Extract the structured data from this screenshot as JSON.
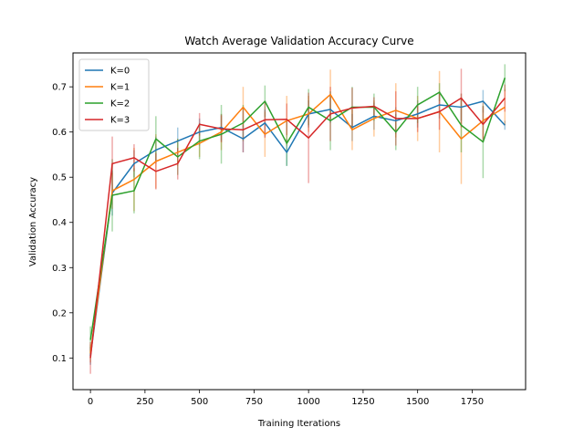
{
  "chart_data": {
    "type": "line",
    "title": "Watch Average Validation Accuracy Curve",
    "xlabel": "Training Iterations",
    "ylabel": "Validation Accuracy",
    "xlim": [
      -80,
      1995
    ],
    "ylim": [
      0.03,
      0.775
    ],
    "x_ticks": [
      0,
      250,
      500,
      750,
      1000,
      1250,
      1500,
      1750
    ],
    "y_ticks": [
      0.1,
      0.2,
      0.3,
      0.4,
      0.5,
      0.6,
      0.7
    ],
    "x_tick_labels": [
      "0",
      "250",
      "500",
      "750",
      "1000",
      "1250",
      "1500",
      "1750"
    ],
    "y_tick_labels": [
      "0.1",
      "0.2",
      "0.3",
      "0.4",
      "0.5",
      "0.6",
      "0.7"
    ],
    "grid": false,
    "legend_position": "top-left",
    "x": [
      0,
      100,
      200,
      300,
      400,
      500,
      600,
      700,
      800,
      900,
      1000,
      1100,
      1200,
      1300,
      1400,
      1500,
      1600,
      1700,
      1800,
      1900
    ],
    "series": [
      {
        "name": "K=0",
        "color": "#1f77b4",
        "values": [
          0.105,
          0.465,
          0.53,
          0.56,
          0.58,
          0.6,
          0.61,
          0.585,
          0.62,
          0.555,
          0.64,
          0.65,
          0.61,
          0.635,
          0.625,
          0.64,
          0.66,
          0.655,
          0.668,
          0.615
        ],
        "errors": [
          0.02,
          0.05,
          0.03,
          0.03,
          0.03,
          0.03,
          0.03,
          0.03,
          0.03,
          0.03,
          0.03,
          0.03,
          0.03,
          0.03,
          0.03,
          0.03,
          0.03,
          0.03,
          0.025,
          0.01
        ]
      },
      {
        "name": "K=1",
        "color": "#ff7f0e",
        "values": [
          0.11,
          0.47,
          0.495,
          0.535,
          0.555,
          0.575,
          0.6,
          0.655,
          0.595,
          0.625,
          0.64,
          0.683,
          0.605,
          0.63,
          0.648,
          0.63,
          0.645,
          0.585,
          0.625,
          0.655
        ],
        "errors": [
          0.02,
          0.04,
          0.07,
          0.06,
          0.03,
          0.03,
          0.04,
          0.045,
          0.05,
          0.055,
          0.04,
          0.055,
          0.045,
          0.04,
          0.06,
          0.05,
          0.09,
          0.1,
          0.04,
          0.04
        ]
      },
      {
        "name": "K=2",
        "color": "#2ca02c",
        "values": [
          0.14,
          0.46,
          0.47,
          0.585,
          0.545,
          0.58,
          0.595,
          0.62,
          0.668,
          0.575,
          0.655,
          0.625,
          0.655,
          0.655,
          0.6,
          0.66,
          0.688,
          0.615,
          0.578,
          0.72
        ],
        "errors": [
          0.03,
          0.08,
          0.05,
          0.05,
          0.04,
          0.04,
          0.065,
          0.04,
          0.035,
          0.05,
          0.04,
          0.065,
          0.045,
          0.03,
          0.04,
          0.04,
          0.02,
          0.06,
          0.08,
          0.03
        ]
      },
      {
        "name": "K=3",
        "color": "#d62728",
        "values": [
          0.1,
          0.53,
          0.543,
          0.513,
          0.53,
          0.617,
          0.607,
          0.605,
          0.627,
          0.628,
          0.587,
          0.64,
          0.653,
          0.657,
          0.63,
          0.63,
          0.645,
          0.675,
          0.617,
          0.675
        ],
        "errors": [
          0.035,
          0.06,
          0.03,
          0.04,
          0.035,
          0.025,
          0.03,
          0.05,
          0.04,
          0.035,
          0.1,
          0.06,
          0.045,
          0.02,
          0.06,
          0.03,
          0.04,
          0.065,
          0.04,
          0.03
        ]
      }
    ]
  }
}
